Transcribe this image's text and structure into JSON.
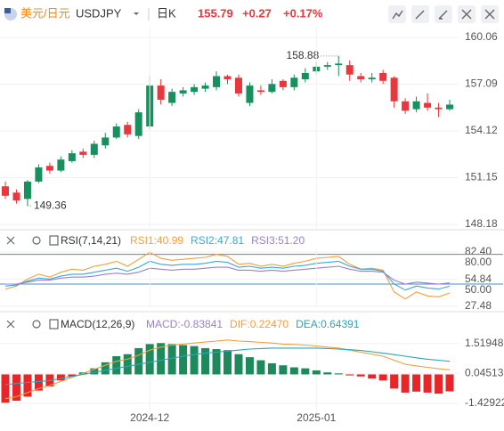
{
  "header": {
    "pair": "美元/日元",
    "symbol": "USDJPY",
    "period": "日K",
    "price": 155.79,
    "change": "+0.27",
    "change_pct": "+0.17%"
  },
  "chart_data": [
    {
      "type": "candlestick",
      "ylim": [
        147.84,
        160.74
      ],
      "yticks": [
        160.06,
        157.09,
        154.12,
        151.15,
        148.18
      ],
      "up_color": "#17905e",
      "down_color": "#e8373d",
      "open": [
        150.6,
        150.2,
        149.8,
        150.9,
        151.9,
        151.6,
        152.2,
        152.8,
        152.6,
        153.2,
        153.7,
        154.5,
        153.8,
        154.4,
        157.0,
        155.9,
        156.5,
        156.6,
        156.8,
        156.9,
        157.6,
        157.5,
        155.9,
        156.7,
        156.6,
        157.3,
        156.9,
        157.4,
        157.9,
        158.2,
        158.3,
        158.3,
        157.6,
        157.4,
        157.8,
        157.5,
        156.0,
        155.5,
        155.9,
        155.6,
        155.5
      ],
      "high": [
        150.9,
        150.4,
        151.0,
        152.0,
        152.1,
        152.5,
        152.9,
        153.0,
        153.5,
        154.0,
        154.6,
        154.7,
        155.5,
        157.6,
        157.4,
        156.8,
        156.9,
        157.1,
        157.2,
        157.9,
        157.7,
        157.7,
        157.2,
        157.0,
        157.4,
        157.4,
        157.7,
        158.1,
        158.5,
        158.5,
        158.88,
        158.6,
        157.8,
        157.8,
        158.0,
        157.6,
        156.2,
        156.3,
        156.5,
        155.9,
        156.1
      ],
      "low": [
        149.8,
        149.5,
        149.36,
        150.8,
        151.4,
        151.5,
        152.1,
        152.4,
        152.4,
        153.0,
        153.6,
        153.7,
        153.6,
        154.2,
        155.8,
        155.7,
        156.3,
        156.4,
        156.6,
        156.7,
        157.1,
        156.3,
        155.7,
        156.4,
        156.5,
        156.7,
        156.7,
        157.2,
        157.7,
        158.0,
        157.6,
        157.3,
        157.2,
        157.2,
        157.1,
        155.6,
        155.2,
        155.3,
        155.4,
        155.0,
        155.4
      ],
      "close": [
        150.0,
        149.7,
        150.9,
        151.8,
        151.6,
        152.3,
        152.7,
        152.6,
        153.3,
        153.7,
        154.4,
        153.9,
        155.3,
        157.0,
        156.1,
        156.6,
        156.7,
        156.9,
        157.0,
        157.6,
        157.4,
        156.5,
        157.0,
        156.6,
        157.1,
        156.9,
        157.5,
        157.8,
        158.2,
        158.3,
        158.4,
        157.7,
        157.4,
        157.5,
        157.3,
        156.0,
        155.4,
        156.0,
        155.6,
        155.5,
        155.79
      ],
      "annotations": [
        {
          "value": 158.88,
          "label": "158.88"
        },
        {
          "value": 149.36,
          "label": "149.36"
        }
      ]
    },
    {
      "type": "line",
      "title": "RSI(7,14,21)",
      "ylim": [
        26.6,
        85.1
      ],
      "yticks": [
        {
          "value": 80,
          "label": "80.00"
        },
        {
          "value": 82.4,
          "label": "82.40"
        },
        54.84,
        {
          "value": 50,
          "label": "50.00"
        },
        27.48
      ],
      "levels": [
        80,
        50
      ],
      "level_color": "#4a8fc4",
      "series": [
        {
          "name": "RSI1:40.99",
          "color": "#f0a040",
          "values": [
            45,
            48,
            55,
            60,
            57,
            62,
            65,
            64,
            68,
            70,
            73,
            68,
            75,
            82,
            76,
            74,
            75,
            76,
            77,
            80,
            78,
            70,
            71,
            68,
            70,
            68,
            71,
            73,
            76,
            77,
            78,
            70,
            65,
            66,
            64,
            42,
            35,
            42,
            38,
            37,
            40.99
          ]
        },
        {
          "name": "RSI2:47.81",
          "color": "#3aa8d8",
          "values": [
            48,
            49,
            53,
            56,
            55,
            58,
            60,
            60,
            62,
            64,
            66,
            63,
            67,
            73,
            70,
            69,
            70,
            70,
            71,
            73,
            72,
            67,
            68,
            66,
            67,
            66,
            68,
            69,
            71,
            72,
            73,
            68,
            65,
            65,
            63,
            50,
            44,
            48,
            46,
            45,
            47.81
          ]
        },
        {
          "name": "RSI3:51.20",
          "color": "#9a7fd0",
          "values": [
            50,
            50,
            52,
            54,
            54,
            56,
            57,
            57,
            58,
            60,
            61,
            60,
            62,
            66,
            65,
            64,
            65,
            65,
            66,
            67,
            67,
            64,
            64,
            63,
            64,
            63,
            64,
            65,
            66,
            67,
            68,
            65,
            63,
            63,
            62,
            54,
            50,
            52,
            51,
            50,
            51.2
          ]
        }
      ]
    },
    {
      "type": "macd",
      "title": "MACD(12,26,9)",
      "ylim": [
        -2.18,
        2.66
      ],
      "yticks": [
        1.51948,
        0.04513,
        -1.42922
      ],
      "categories": [
        null,
        null,
        null,
        null,
        null,
        null,
        null,
        null,
        null,
        null,
        null,
        null,
        null,
        "2024-12",
        null,
        null,
        null,
        null,
        null,
        null,
        null,
        null,
        null,
        null,
        null,
        null,
        null,
        null,
        "2025-01",
        null,
        null,
        null,
        null,
        null,
        null,
        null,
        null,
        null,
        null,
        null,
        null
      ],
      "up_color": "#1e8a5c",
      "down_color": "#e8262a",
      "series": [
        {
          "name": "MACD:-0.83841",
          "color": "#9a7fd0",
          "kind": "bar",
          "values": [
            -1.4,
            -1.3,
            -1.1,
            -0.8,
            -0.6,
            -0.3,
            -0.1,
            0.1,
            0.3,
            0.6,
            0.9,
            1.0,
            1.3,
            1.5,
            1.55,
            1.5,
            1.45,
            1.4,
            1.3,
            1.25,
            1.2,
            1.0,
            0.85,
            0.7,
            0.55,
            0.45,
            0.35,
            0.3,
            0.2,
            0.1,
            0.05,
            -0.05,
            -0.1,
            -0.2,
            -0.3,
            -0.7,
            -0.9,
            -0.85,
            -0.9,
            -0.95,
            -0.83841
          ]
        },
        {
          "name": "DIF:0.22470",
          "color": "#f0a040",
          "kind": "line",
          "values": [
            -1.2,
            -1.1,
            -0.9,
            -0.7,
            -0.55,
            -0.35,
            -0.15,
            0.05,
            0.25,
            0.45,
            0.65,
            0.75,
            0.95,
            1.2,
            1.35,
            1.45,
            1.5,
            1.55,
            1.6,
            1.65,
            1.7,
            1.65,
            1.62,
            1.58,
            1.55,
            1.5,
            1.48,
            1.45,
            1.4,
            1.35,
            1.3,
            1.2,
            1.1,
            1.0,
            0.9,
            0.7,
            0.5,
            0.42,
            0.35,
            0.28,
            0.2247
          ]
        },
        {
          "name": "DEA:0.64391",
          "color": "#2aa6b8",
          "kind": "line",
          "values": [
            -0.5,
            -0.45,
            -0.4,
            -0.35,
            -0.3,
            -0.2,
            -0.1,
            0.0,
            0.1,
            0.2,
            0.3,
            0.4,
            0.5,
            0.6,
            0.7,
            0.8,
            0.9,
            0.98,
            1.05,
            1.1,
            1.15,
            1.2,
            1.25,
            1.28,
            1.3,
            1.3,
            1.3,
            1.3,
            1.3,
            1.28,
            1.25,
            1.22,
            1.18,
            1.12,
            1.05,
            0.98,
            0.9,
            0.82,
            0.75,
            0.7,
            0.64391
          ]
        }
      ]
    }
  ]
}
